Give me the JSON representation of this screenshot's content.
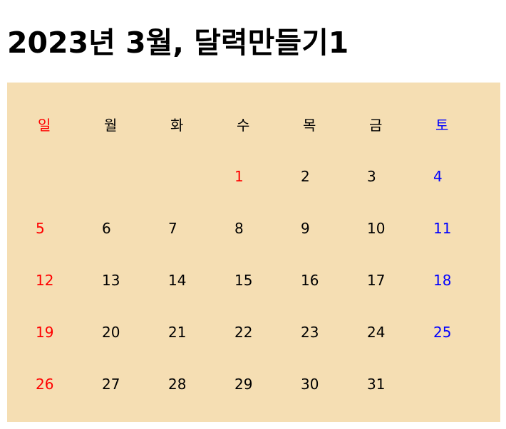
{
  "title": "2023년 3월, 달력만들기1",
  "calendar": {
    "weekdays": [
      "일",
      "월",
      "화",
      "수",
      "목",
      "금",
      "토"
    ],
    "weeks": [
      [
        "",
        "",
        "",
        "1",
        "2",
        "3",
        "4"
      ],
      [
        "5",
        "6",
        "7",
        "8",
        "9",
        "10",
        "11"
      ],
      [
        "12",
        "13",
        "14",
        "15",
        "16",
        "17",
        "18"
      ],
      [
        "19",
        "20",
        "21",
        "22",
        "23",
        "24",
        "25"
      ],
      [
        "26",
        "27",
        "28",
        "29",
        "30",
        "31",
        ""
      ]
    ],
    "colors": {
      "background": "#f5deb3",
      "sunday": "#ff0000",
      "saturday": "#0000ff",
      "weekday": "#000000",
      "first_day": "#ff0000"
    }
  }
}
